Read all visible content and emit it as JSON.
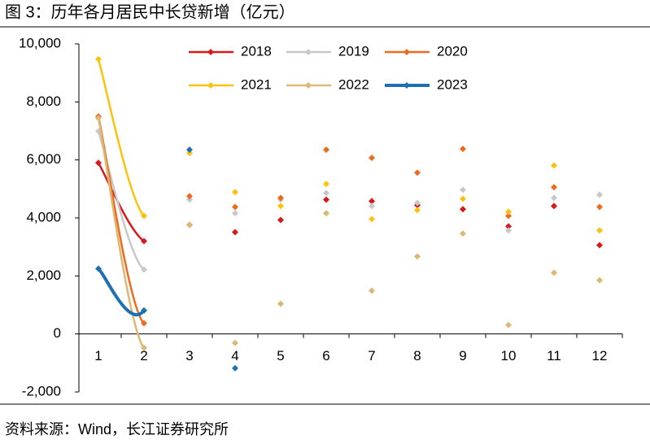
{
  "chart_data": {
    "type": "line",
    "title": "图 3：历年各月居民中长贷新增（亿元）",
    "source": "资料来源：Wind，长江证券研究所",
    "categories": [
      "1",
      "2",
      "3",
      "4",
      "5",
      "6",
      "7",
      "8",
      "9",
      "10",
      "11",
      "12"
    ],
    "ylim": [
      -2000,
      10000
    ],
    "yticks": [
      {
        "value": -2000,
        "label": "-2,000"
      },
      0,
      {
        "value": 2000,
        "label": "2,000"
      },
      {
        "value": 4000,
        "label": "4,000"
      },
      {
        "value": 6000,
        "label": "6,000"
      },
      {
        "value": 8000,
        "label": "8,000"
      },
      {
        "value": 10000,
        "label": "10,000"
      }
    ],
    "series": [
      {
        "name": "2018",
        "color": "#d7191c",
        "values": [
          5900,
          3200,
          3760,
          3510,
          3930,
          4630,
          4580,
          4440,
          4300,
          3710,
          4410,
          3060
        ]
      },
      {
        "name": "2019",
        "color": "#c8c8c8",
        "values": [
          6990,
          2220,
          4630,
          4160,
          4630,
          4860,
          4410,
          4520,
          4970,
          3570,
          4690,
          4800
        ]
      },
      {
        "name": "2020",
        "color": "#ec6c1f",
        "values": [
          7500,
          370,
          4750,
          4380,
          4690,
          6350,
          6070,
          5560,
          6380,
          4070,
          5060,
          4380
        ]
      },
      {
        "name": "2021",
        "color": "#fcc20e",
        "values": [
          9470,
          4070,
          6240,
          4890,
          4410,
          5170,
          3960,
          4270,
          4660,
          4210,
          5810,
          3570
        ]
      },
      {
        "name": "2022",
        "color": "#ddb874",
        "values": [
          7440,
          -480,
          3760,
          -310,
          1040,
          4160,
          1490,
          2670,
          3460,
          310,
          2110,
          1850
        ]
      },
      {
        "name": "2023",
        "color": "#1f6fb4",
        "values": [
          2250,
          810,
          6350,
          -1180,
          null,
          null,
          null,
          null,
          null,
          null,
          null,
          null
        ]
      }
    ]
  }
}
